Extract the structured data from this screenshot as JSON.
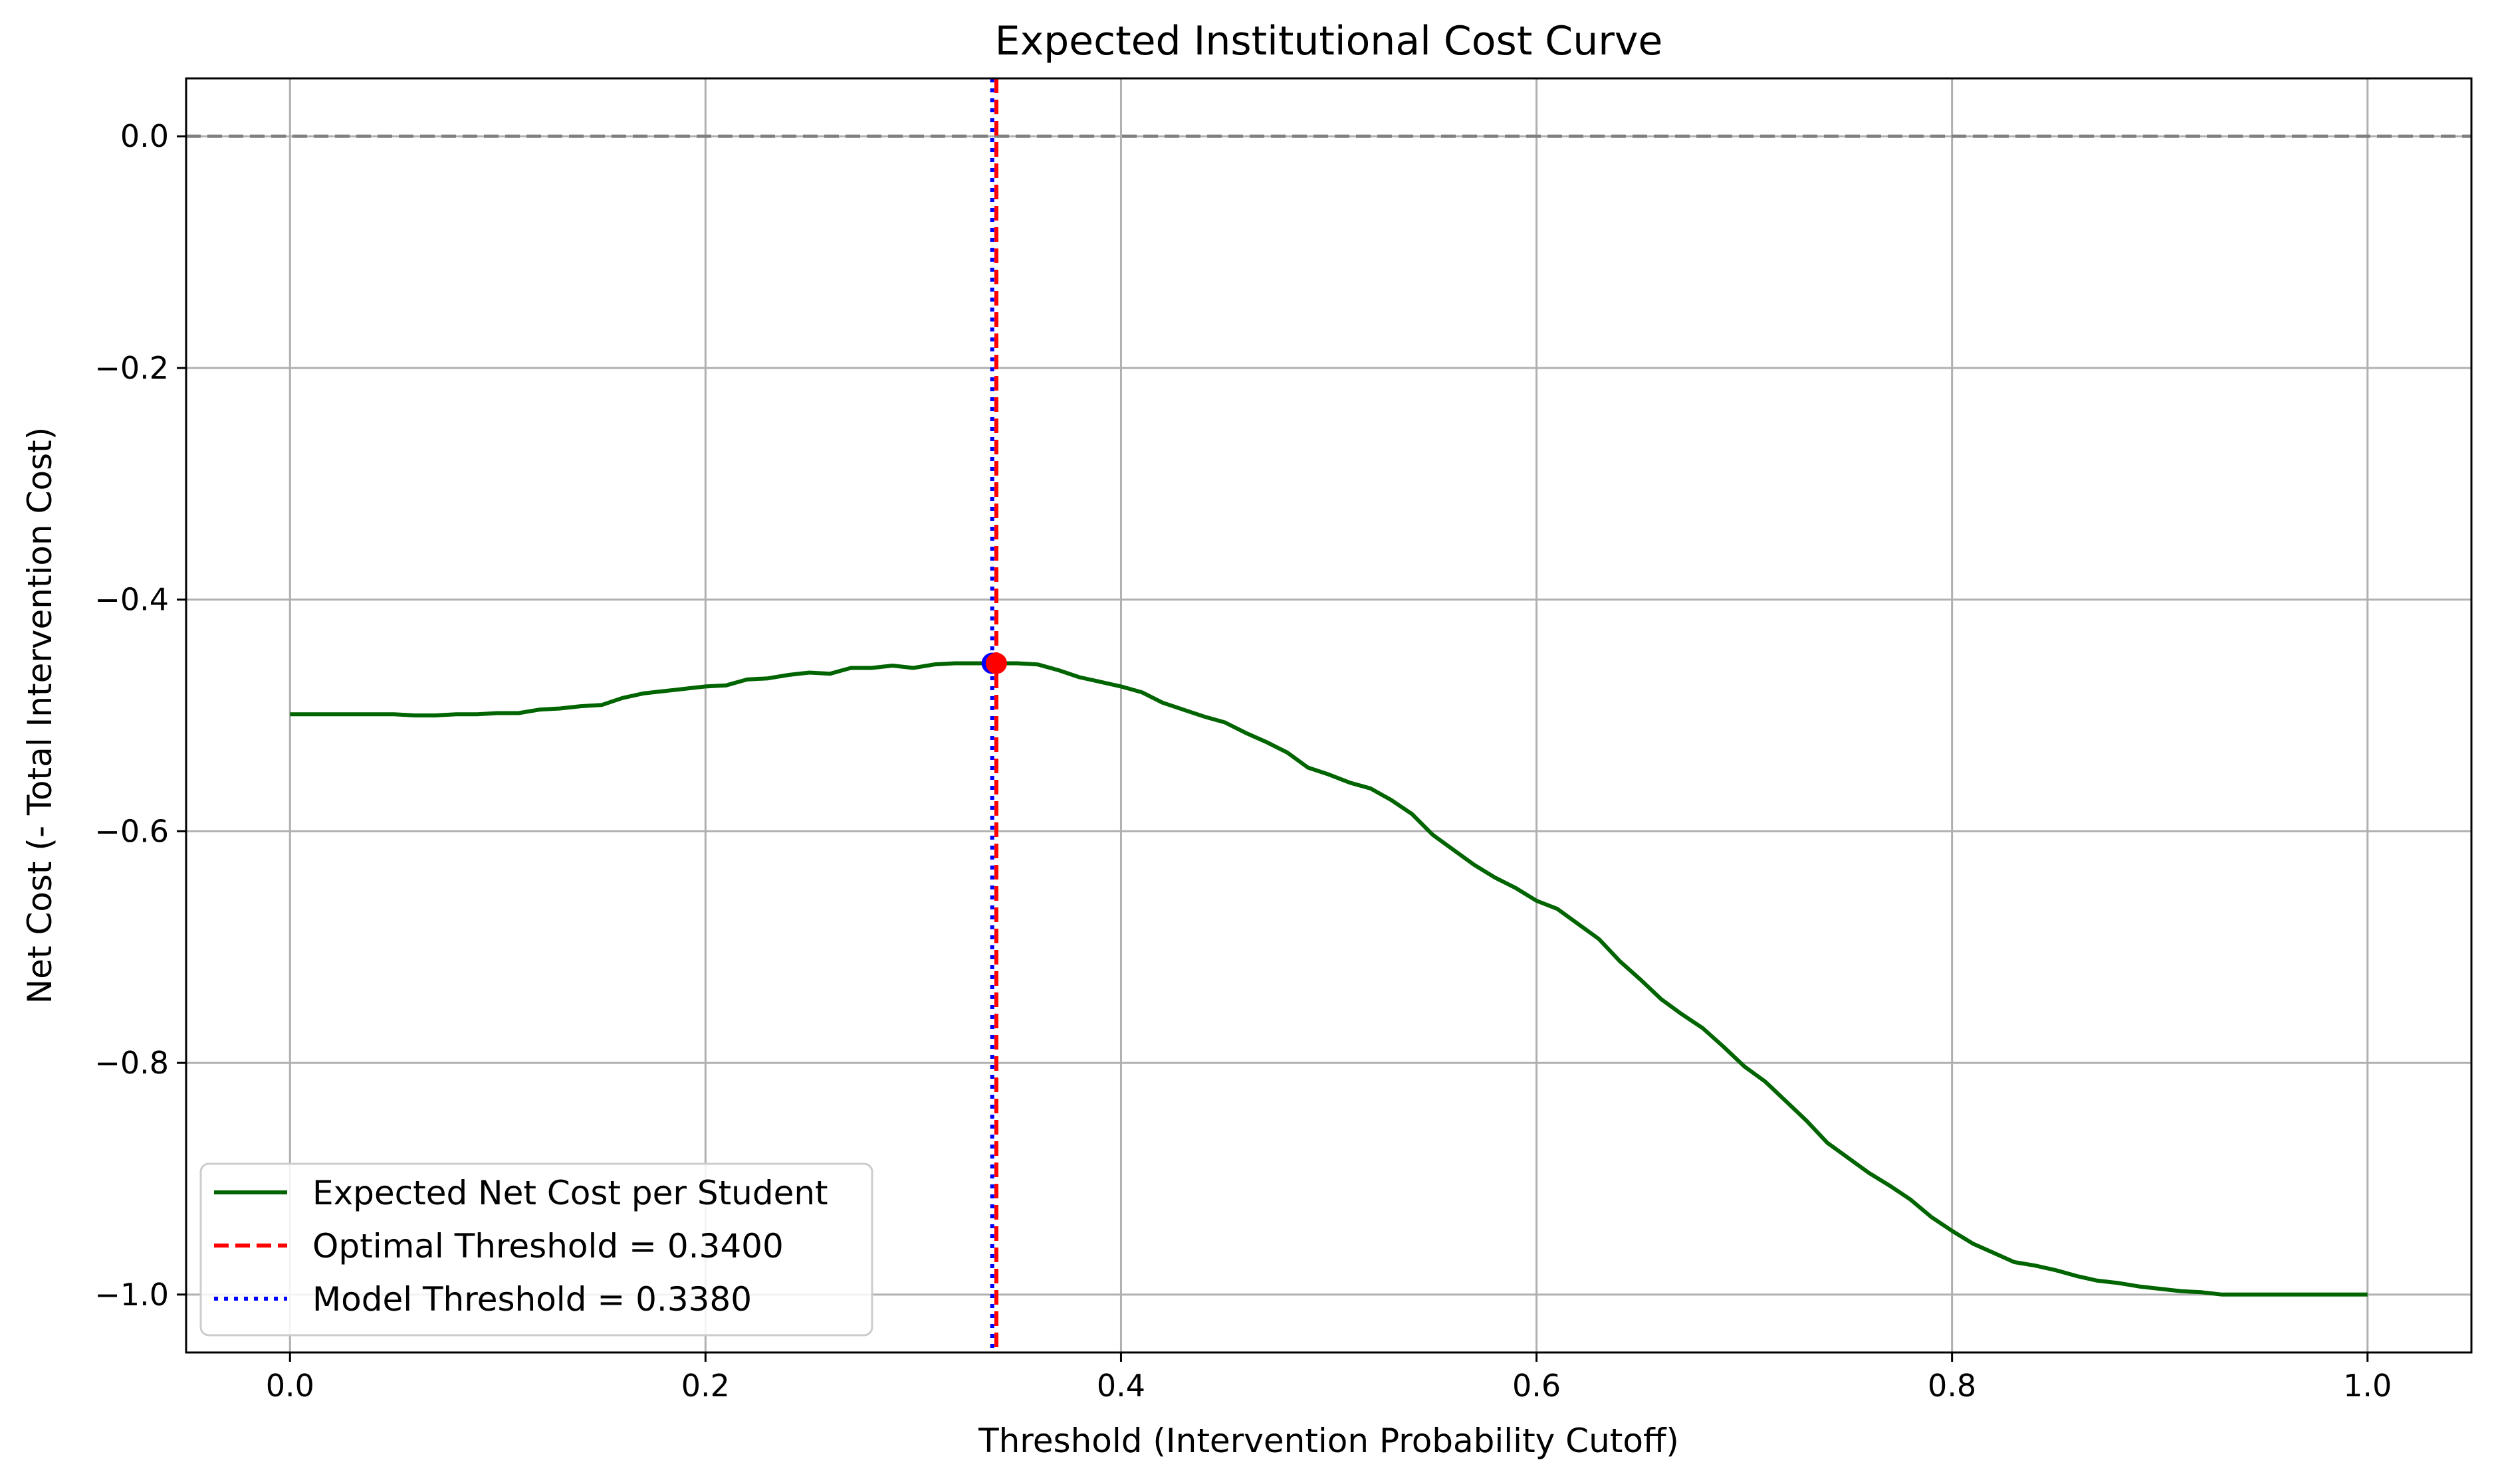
{
  "chart_data": {
    "type": "line",
    "title": "Expected Institutional Cost Curve",
    "xlabel": "Threshold (Intervention Probability Cutoff)",
    "ylabel": "Net Cost (- Total Intervention Cost)",
    "xlim": [
      -0.05,
      1.05
    ],
    "ylim": [
      -1.05,
      0.05
    ],
    "grid": true,
    "legend_position": "lower-left",
    "x_ticks": [
      0.0,
      0.2,
      0.4,
      0.6,
      0.8,
      1.0
    ],
    "x_tick_labels": [
      "0.0",
      "0.2",
      "0.4",
      "0.6",
      "0.8",
      "1.0"
    ],
    "y_ticks": [
      0.0,
      -0.2,
      -0.4,
      -0.6,
      -0.8,
      -1.0
    ],
    "y_tick_labels": [
      "0.0",
      "−0.2",
      "−0.4",
      "−0.6",
      "−0.8",
      "−1.0"
    ],
    "series": [
      {
        "name": "Expected Net Cost per Student",
        "color": "#006400",
        "style": "solid",
        "x": [
          0.0,
          0.01,
          0.02,
          0.03,
          0.04,
          0.05,
          0.06,
          0.07,
          0.08,
          0.09,
          0.1,
          0.11,
          0.12,
          0.13,
          0.14,
          0.15,
          0.16,
          0.17,
          0.18,
          0.19,
          0.2,
          0.21,
          0.22,
          0.23,
          0.24,
          0.25,
          0.26,
          0.27,
          0.28,
          0.29,
          0.3,
          0.31,
          0.32,
          0.33,
          0.34,
          0.35,
          0.36,
          0.37,
          0.38,
          0.39,
          0.4,
          0.41,
          0.42,
          0.43,
          0.44,
          0.45,
          0.46,
          0.47,
          0.48,
          0.49,
          0.5,
          0.51,
          0.52,
          0.53,
          0.54,
          0.55,
          0.56,
          0.57,
          0.58,
          0.59,
          0.6,
          0.61,
          0.62,
          0.63,
          0.64,
          0.65,
          0.66,
          0.67,
          0.68,
          0.69,
          0.7,
          0.71,
          0.72,
          0.73,
          0.74,
          0.75,
          0.76,
          0.77,
          0.78,
          0.79,
          0.8,
          0.81,
          0.82,
          0.83,
          0.84,
          0.85,
          0.86,
          0.87,
          0.88,
          0.89,
          0.9,
          0.91,
          0.92,
          0.93,
          0.94,
          0.95,
          0.96,
          0.97,
          0.98,
          0.99,
          1.0
        ],
        "y": [
          -0.499,
          -0.499,
          -0.499,
          -0.499,
          -0.499,
          -0.499,
          -0.5,
          -0.5,
          -0.499,
          -0.499,
          -0.498,
          -0.498,
          -0.495,
          -0.494,
          -0.492,
          -0.491,
          -0.485,
          -0.481,
          -0.479,
          -0.477,
          -0.475,
          -0.474,
          -0.469,
          -0.468,
          -0.465,
          -0.463,
          -0.464,
          -0.459,
          -0.459,
          -0.457,
          -0.459,
          -0.456,
          -0.455,
          -0.455,
          -0.455,
          -0.455,
          -0.456,
          -0.461,
          -0.467,
          -0.471,
          -0.475,
          -0.48,
          -0.489,
          -0.495,
          -0.501,
          -0.506,
          -0.515,
          -0.523,
          -0.532,
          -0.545,
          -0.551,
          -0.558,
          -0.563,
          -0.573,
          -0.585,
          -0.603,
          -0.616,
          -0.629,
          -0.64,
          -0.649,
          -0.66,
          -0.667,
          -0.68,
          -0.693,
          -0.712,
          -0.728,
          -0.745,
          -0.758,
          -0.77,
          -0.786,
          -0.803,
          -0.816,
          -0.833,
          -0.85,
          -0.869,
          -0.882,
          -0.895,
          -0.906,
          -0.918,
          -0.933,
          -0.945,
          -0.956,
          -0.964,
          -0.972,
          -0.975,
          -0.979,
          -0.984,
          -0.988,
          -0.99,
          -0.993,
          -0.995,
          -0.997,
          -0.998,
          -1.0,
          -1.0,
          -1.0,
          -1.0,
          -1.0,
          -1.0,
          -1.0,
          -1.0
        ]
      },
      {
        "name": "Optimal Threshold = 0.3400",
        "color": "#ff0000",
        "style": "dashed",
        "vline_x": 0.34
      },
      {
        "name": "Model Threshold = 0.3380",
        "color": "#0000ff",
        "style": "dotted",
        "vline_x": 0.338
      }
    ],
    "reference_lines": [
      {
        "orientation": "horizontal",
        "y": 0.0,
        "color": "#808080",
        "style": "dashed"
      }
    ],
    "markers": [
      {
        "x": 0.338,
        "y": -0.455,
        "color": "#0000ff"
      },
      {
        "x": 0.34,
        "y": -0.455,
        "color": "#ff0000"
      }
    ]
  }
}
